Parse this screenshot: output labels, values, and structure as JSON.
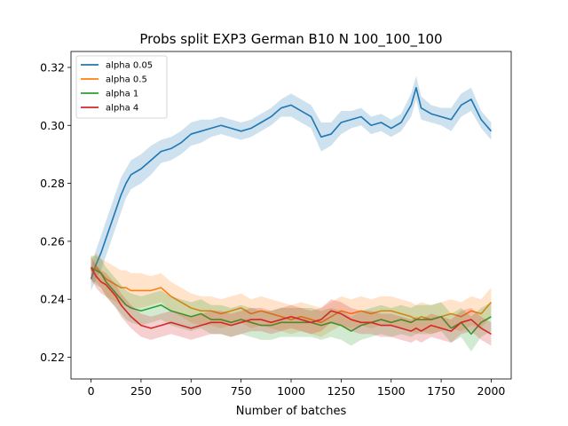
{
  "chart_data": {
    "type": "line",
    "title": "Probs split EXP3 German B10 N 100_100_100",
    "xlabel": "Number of batches",
    "ylabel": "",
    "xlim": [
      -100,
      2100
    ],
    "ylim": [
      0.2125,
      0.3255
    ],
    "xticks": [
      0,
      250,
      500,
      750,
      1000,
      1250,
      1500,
      1750,
      2000
    ],
    "xtick_labels": [
      "0",
      "250",
      "500",
      "750",
      "1000",
      "1250",
      "1500",
      "1750",
      "2000"
    ],
    "yticks": [
      0.22,
      0.24,
      0.26,
      0.28,
      0.3,
      0.32
    ],
    "ytick_labels": [
      "0.22",
      "0.24",
      "0.26",
      "0.28",
      "0.30",
      "0.32"
    ],
    "grid": false,
    "legend_position": "top-left",
    "x": [
      0,
      25,
      50,
      75,
      100,
      125,
      150,
      175,
      200,
      250,
      300,
      350,
      400,
      450,
      500,
      550,
      600,
      650,
      700,
      750,
      800,
      850,
      900,
      950,
      1000,
      1050,
      1100,
      1150,
      1200,
      1250,
      1300,
      1350,
      1400,
      1450,
      1500,
      1550,
      1600,
      1625,
      1650,
      1700,
      1750,
      1800,
      1850,
      1900,
      1950,
      2000
    ],
    "series": [
      {
        "name": "alpha 0.05",
        "color": "#1f77b4",
        "values": [
          0.247,
          0.252,
          0.256,
          0.261,
          0.266,
          0.271,
          0.276,
          0.28,
          0.283,
          0.285,
          0.288,
          0.291,
          0.292,
          0.294,
          0.297,
          0.298,
          0.299,
          0.3,
          0.299,
          0.298,
          0.299,
          0.301,
          0.303,
          0.306,
          0.307,
          0.305,
          0.303,
          0.296,
          0.297,
          0.301,
          0.302,
          0.303,
          0.3,
          0.301,
          0.299,
          0.301,
          0.307,
          0.313,
          0.306,
          0.304,
          0.303,
          0.302,
          0.307,
          0.309,
          0.302,
          0.298
        ],
        "band": [
          0.004,
          0.005,
          0.006,
          0.006,
          0.006,
          0.006,
          0.006,
          0.005,
          0.005,
          0.005,
          0.005,
          0.004,
          0.004,
          0.004,
          0.004,
          0.004,
          0.003,
          0.003,
          0.003,
          0.003,
          0.003,
          0.003,
          0.003,
          0.003,
          0.004,
          0.004,
          0.004,
          0.005,
          0.004,
          0.004,
          0.003,
          0.003,
          0.003,
          0.003,
          0.003,
          0.003,
          0.004,
          0.004,
          0.004,
          0.003,
          0.003,
          0.004,
          0.004,
          0.004,
          0.003,
          0.003
        ]
      },
      {
        "name": "alpha 0.5",
        "color": "#ff7f0e",
        "values": [
          0.25,
          0.251,
          0.249,
          0.247,
          0.246,
          0.245,
          0.244,
          0.244,
          0.243,
          0.243,
          0.243,
          0.244,
          0.241,
          0.239,
          0.237,
          0.236,
          0.236,
          0.235,
          0.236,
          0.237,
          0.235,
          0.236,
          0.235,
          0.234,
          0.233,
          0.234,
          0.233,
          0.232,
          0.234,
          0.236,
          0.235,
          0.236,
          0.235,
          0.236,
          0.236,
          0.235,
          0.234,
          0.233,
          0.234,
          0.233,
          0.234,
          0.235,
          0.234,
          0.236,
          0.235,
          0.239
        ],
        "band": [
          0.004,
          0.005,
          0.005,
          0.006,
          0.006,
          0.006,
          0.006,
          0.006,
          0.006,
          0.006,
          0.005,
          0.005,
          0.005,
          0.005,
          0.005,
          0.005,
          0.005,
          0.005,
          0.005,
          0.005,
          0.005,
          0.005,
          0.005,
          0.005,
          0.005,
          0.005,
          0.005,
          0.005,
          0.005,
          0.005,
          0.005,
          0.005,
          0.005,
          0.005,
          0.005,
          0.005,
          0.005,
          0.005,
          0.005,
          0.005,
          0.005,
          0.005,
          0.005,
          0.005,
          0.005,
          0.005
        ]
      },
      {
        "name": "alpha 1",
        "color": "#2ca02c",
        "values": [
          0.251,
          0.25,
          0.249,
          0.246,
          0.244,
          0.242,
          0.24,
          0.238,
          0.237,
          0.236,
          0.237,
          0.238,
          0.236,
          0.235,
          0.234,
          0.235,
          0.233,
          0.233,
          0.232,
          0.233,
          0.232,
          0.231,
          0.231,
          0.232,
          0.232,
          0.232,
          0.232,
          0.231,
          0.232,
          0.231,
          0.229,
          0.231,
          0.232,
          0.233,
          0.232,
          0.233,
          0.232,
          0.233,
          0.233,
          0.233,
          0.234,
          0.23,
          0.232,
          0.228,
          0.232,
          0.234
        ],
        "band": [
          0.004,
          0.005,
          0.005,
          0.005,
          0.005,
          0.005,
          0.005,
          0.005,
          0.005,
          0.005,
          0.005,
          0.005,
          0.005,
          0.005,
          0.005,
          0.005,
          0.005,
          0.005,
          0.005,
          0.005,
          0.005,
          0.005,
          0.005,
          0.005,
          0.005,
          0.005,
          0.005,
          0.005,
          0.005,
          0.005,
          0.005,
          0.005,
          0.005,
          0.005,
          0.005,
          0.005,
          0.005,
          0.005,
          0.005,
          0.005,
          0.005,
          0.005,
          0.005,
          0.006,
          0.005,
          0.005
        ]
      },
      {
        "name": "alpha 4",
        "color": "#d62728",
        "values": [
          0.251,
          0.248,
          0.246,
          0.245,
          0.243,
          0.241,
          0.238,
          0.236,
          0.234,
          0.231,
          0.23,
          0.231,
          0.232,
          0.231,
          0.23,
          0.231,
          0.232,
          0.232,
          0.231,
          0.232,
          0.233,
          0.233,
          0.232,
          0.233,
          0.234,
          0.233,
          0.232,
          0.233,
          0.236,
          0.235,
          0.233,
          0.232,
          0.232,
          0.231,
          0.231,
          0.23,
          0.229,
          0.23,
          0.229,
          0.231,
          0.23,
          0.229,
          0.232,
          0.233,
          0.23,
          0.228
        ],
        "band": [
          0.004,
          0.004,
          0.004,
          0.004,
          0.004,
          0.004,
          0.004,
          0.004,
          0.004,
          0.004,
          0.004,
          0.004,
          0.004,
          0.004,
          0.004,
          0.004,
          0.004,
          0.004,
          0.004,
          0.004,
          0.004,
          0.004,
          0.004,
          0.004,
          0.004,
          0.004,
          0.004,
          0.004,
          0.004,
          0.004,
          0.004,
          0.004,
          0.004,
          0.004,
          0.004,
          0.004,
          0.004,
          0.004,
          0.004,
          0.004,
          0.004,
          0.004,
          0.004,
          0.004,
          0.004,
          0.004
        ]
      }
    ]
  }
}
